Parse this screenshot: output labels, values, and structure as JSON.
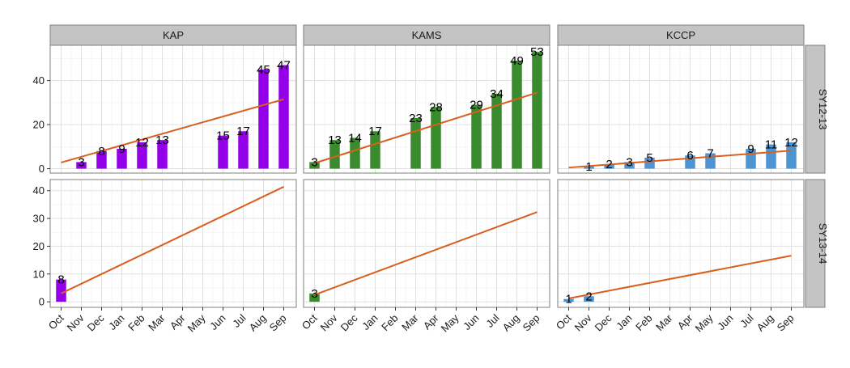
{
  "chart_data": {
    "type": "bar",
    "facet_columns": [
      "KAP",
      "KAMS",
      "KCCP"
    ],
    "facet_rows": [
      "SY12-13",
      "SY13-14"
    ],
    "categories": [
      "Oct",
      "Nov",
      "Dec",
      "Jan",
      "Feb",
      "Mar",
      "Apr",
      "May",
      "Jun",
      "Jul",
      "Aug",
      "Sep"
    ],
    "rows": [
      {
        "ylim": [
          -2,
          56
        ],
        "yticks": [
          0,
          20,
          40
        ],
        "panels": [
          {
            "values": [
              null,
              3,
              8,
              9,
              12,
              13,
              null,
              null,
              15,
              17,
              45,
              47
            ],
            "labels": [
              "",
              "3",
              "8",
              "9",
              "12",
              "13",
              "",
              "",
              "15",
              "17",
              "45",
              "47"
            ],
            "trend": [
              2.8,
              31.5
            ]
          },
          {
            "values": [
              3,
              13,
              14,
              17,
              null,
              23,
              28,
              null,
              29,
              34,
              49,
              53
            ],
            "labels": [
              "3",
              "13",
              "14",
              "17",
              "",
              "23",
              "28",
              "",
              "29",
              "34",
              "49",
              "53"
            ],
            "trend": [
              2.5,
              34.5
            ]
          },
          {
            "values": [
              null,
              1,
              2,
              3,
              5,
              null,
              6,
              7,
              null,
              9,
              11,
              12
            ],
            "labels": [
              "",
              "1",
              "2",
              "3",
              "5",
              "",
              "6",
              "7",
              "",
              "9",
              "11",
              "12"
            ],
            "trend": [
              0.5,
              8.2
            ]
          }
        ]
      },
      {
        "ylim": [
          -2,
          44
        ],
        "yticks": [
          0,
          10,
          20,
          30,
          40
        ],
        "panels": [
          {
            "values": [
              8,
              null,
              null,
              null,
              null,
              null,
              null,
              null,
              null,
              null,
              null,
              null
            ],
            "labels": [
              "8",
              "",
              "",
              "",
              "",
              "",
              "",
              "",
              "",
              "",
              "",
              ""
            ],
            "trend": [
              3.0,
              41.4
            ]
          },
          {
            "values": [
              3,
              null,
              null,
              null,
              null,
              null,
              null,
              null,
              null,
              null,
              null,
              null
            ],
            "labels": [
              "3",
              "",
              "",
              "",
              "",
              "",
              "",
              "",
              "",
              "",
              "",
              ""
            ],
            "trend": [
              2.5,
              32.3
            ]
          },
          {
            "values": [
              1,
              2,
              null,
              null,
              null,
              null,
              null,
              null,
              null,
              null,
              null,
              null
            ],
            "labels": [
              "1",
              "2",
              "",
              "",
              "",
              "",
              "",
              "",
              "",
              "",
              "",
              ""
            ],
            "trend": [
              1.2,
              16.6
            ]
          }
        ]
      }
    ],
    "colors": {
      "KAP": "#9400ea",
      "KAMS": "#3a8a2e",
      "KCCP": "#4d94d3",
      "trend": "#d95f1e",
      "strip": "#c4c4c4",
      "grid": "#e5e5e5",
      "border": "#7f7f7f"
    },
    "grid": true,
    "legend": "none"
  }
}
